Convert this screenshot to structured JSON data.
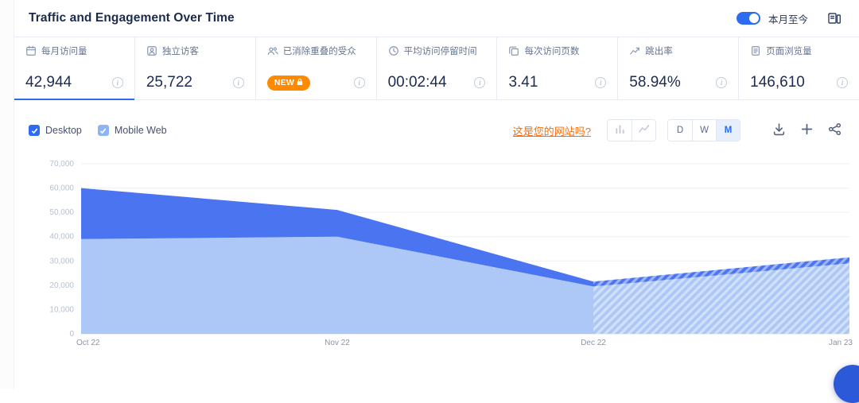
{
  "colors": {
    "accent_blue": "#2e6bf0",
    "desktop_series": "#4a74f0",
    "mobile_series": "#adc8f7",
    "link_orange": "#ff6a00",
    "badge_orange": "#ff8a00"
  },
  "header": {
    "title": "Traffic and Engagement Over Time",
    "range_toggle_label": "本月至今",
    "range_toggle_on": true
  },
  "metrics": [
    {
      "id": "monthly-visits",
      "icon": "calendar-icon",
      "label": "每月访问量",
      "value": "42,944",
      "selected": true
    },
    {
      "id": "unique-visitors",
      "icon": "user-icon",
      "label": "独立访客",
      "value": "25,722"
    },
    {
      "id": "deduplicated-audience",
      "icon": "users-icon",
      "label": "已消除重叠的受众",
      "badge": "NEW",
      "badge_locked": true
    },
    {
      "id": "avg-visit-duration",
      "icon": "clock-icon",
      "label": "平均访问停留时间",
      "value": "00:02:44"
    },
    {
      "id": "pages-per-visit",
      "icon": "pages-icon",
      "label": "每次访问页数",
      "value": "3.41"
    },
    {
      "id": "bounce-rate",
      "icon": "bounce-icon",
      "label": "跳出率",
      "value": "58.94%"
    },
    {
      "id": "page-views",
      "icon": "pageviews-icon",
      "label": "页面浏览量",
      "value": "146,610"
    }
  ],
  "controls": {
    "series_toggles": [
      {
        "label": "Desktop",
        "checked": true,
        "color": "#2e6bf0"
      },
      {
        "label": "Mobile Web",
        "checked": true,
        "color": "#8fb4f5"
      }
    ],
    "your_site_link": "这是您的网站吗?",
    "chart_type_icons": [
      "column-chart-icon",
      "line-chart-icon"
    ],
    "granularity": [
      {
        "label": "D",
        "selected": false
      },
      {
        "label": "W",
        "selected": false
      },
      {
        "label": "M",
        "selected": true
      }
    ],
    "action_icons": [
      "download-icon",
      "plus-icon",
      "share-icon"
    ]
  },
  "chart_data": {
    "type": "area",
    "stacked": true,
    "x": [
      "Oct 22",
      "Nov 22",
      "Dec 22",
      "Jan 23"
    ],
    "series": [
      {
        "name": "Mobile Web",
        "color": "#adc8f7",
        "values": [
          39000,
          40000,
          19500,
          29000
        ]
      },
      {
        "name": "Desktop",
        "color": "#4a74f0",
        "values": [
          21000,
          11000,
          2000,
          2500
        ]
      }
    ],
    "totals": [
      60000,
      51000,
      21500,
      31500
    ],
    "ylim": [
      0,
      70000
    ],
    "ytick_step": 10000,
    "grid": true,
    "legend_position": "top-left-checkboxes",
    "projected_last_segment": true
  }
}
